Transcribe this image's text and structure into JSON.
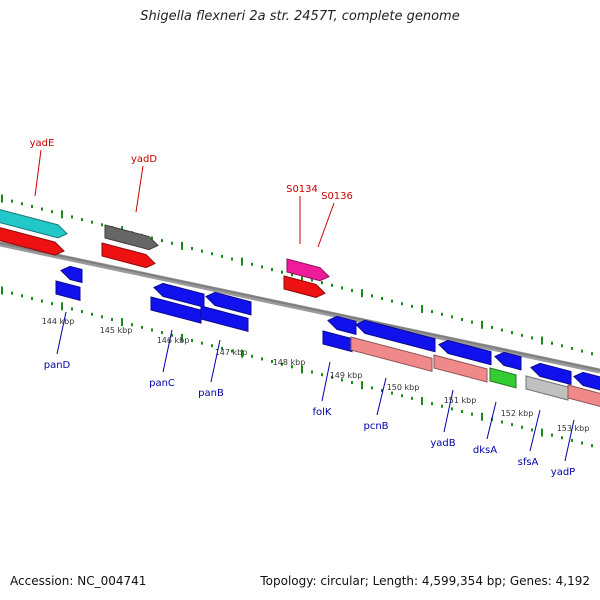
{
  "header": {
    "title": "Shigella flexneri 2a str. 2457T, complete genome"
  },
  "footer": {
    "accession": "Accession: NC_004741",
    "summary": "Topology: circular; Length: 4,599,354 bp; Genes: 4,192"
  },
  "colors": {
    "backbone": "#7f7f7f",
    "tick": "#1a8a1a",
    "label_forward": "#cc0000",
    "label_reverse": "#0000aa",
    "kbp_text": "#333333"
  },
  "kbp_ticks": [
    "144 kbp",
    "145 kbp",
    "146 kbp",
    "147 kbp",
    "148 kbp",
    "149 kbp",
    "150 kbp",
    "151 kbp",
    "152 kbp",
    "153 kbp"
  ],
  "genes": [
    {
      "label": "yadE",
      "color": "#22c8c8"
    },
    {
      "label": "",
      "color": "#ee1111"
    },
    {
      "label": "yadD",
      "color": "#666666"
    },
    {
      "label": "",
      "color": "#ee1111"
    },
    {
      "label": "S0134",
      "color": "#ee1c9a"
    },
    {
      "label": "S0136",
      "color": "#ee1111"
    },
    {
      "label": "",
      "color": "#1111ee"
    },
    {
      "label": "panD",
      "color": "#1111ee"
    },
    {
      "label": "",
      "color": "#1111ee"
    },
    {
      "label": "panC",
      "color": "#1111ee"
    },
    {
      "label": "",
      "color": "#1111ee"
    },
    {
      "label": "panB",
      "color": "#1111ee"
    },
    {
      "label": "",
      "color": "#1111ee"
    },
    {
      "label": "folK",
      "color": "#1111ee"
    },
    {
      "label": "",
      "color": "#1111ee"
    },
    {
      "label": "pcnB",
      "color": "#f08a8a"
    },
    {
      "label": "",
      "color": "#1111ee"
    },
    {
      "label": "yadB",
      "color": "#f08a8a"
    },
    {
      "label": "",
      "color": "#1111ee"
    },
    {
      "label": "dksA",
      "color": "#33cc33"
    },
    {
      "label": "",
      "color": "#1111ee"
    },
    {
      "label": "sfsA",
      "color": "#c0c0c0"
    },
    {
      "label": "",
      "color": "#1111ee"
    },
    {
      "label": "yadP",
      "color": "#f08a8a"
    }
  ]
}
